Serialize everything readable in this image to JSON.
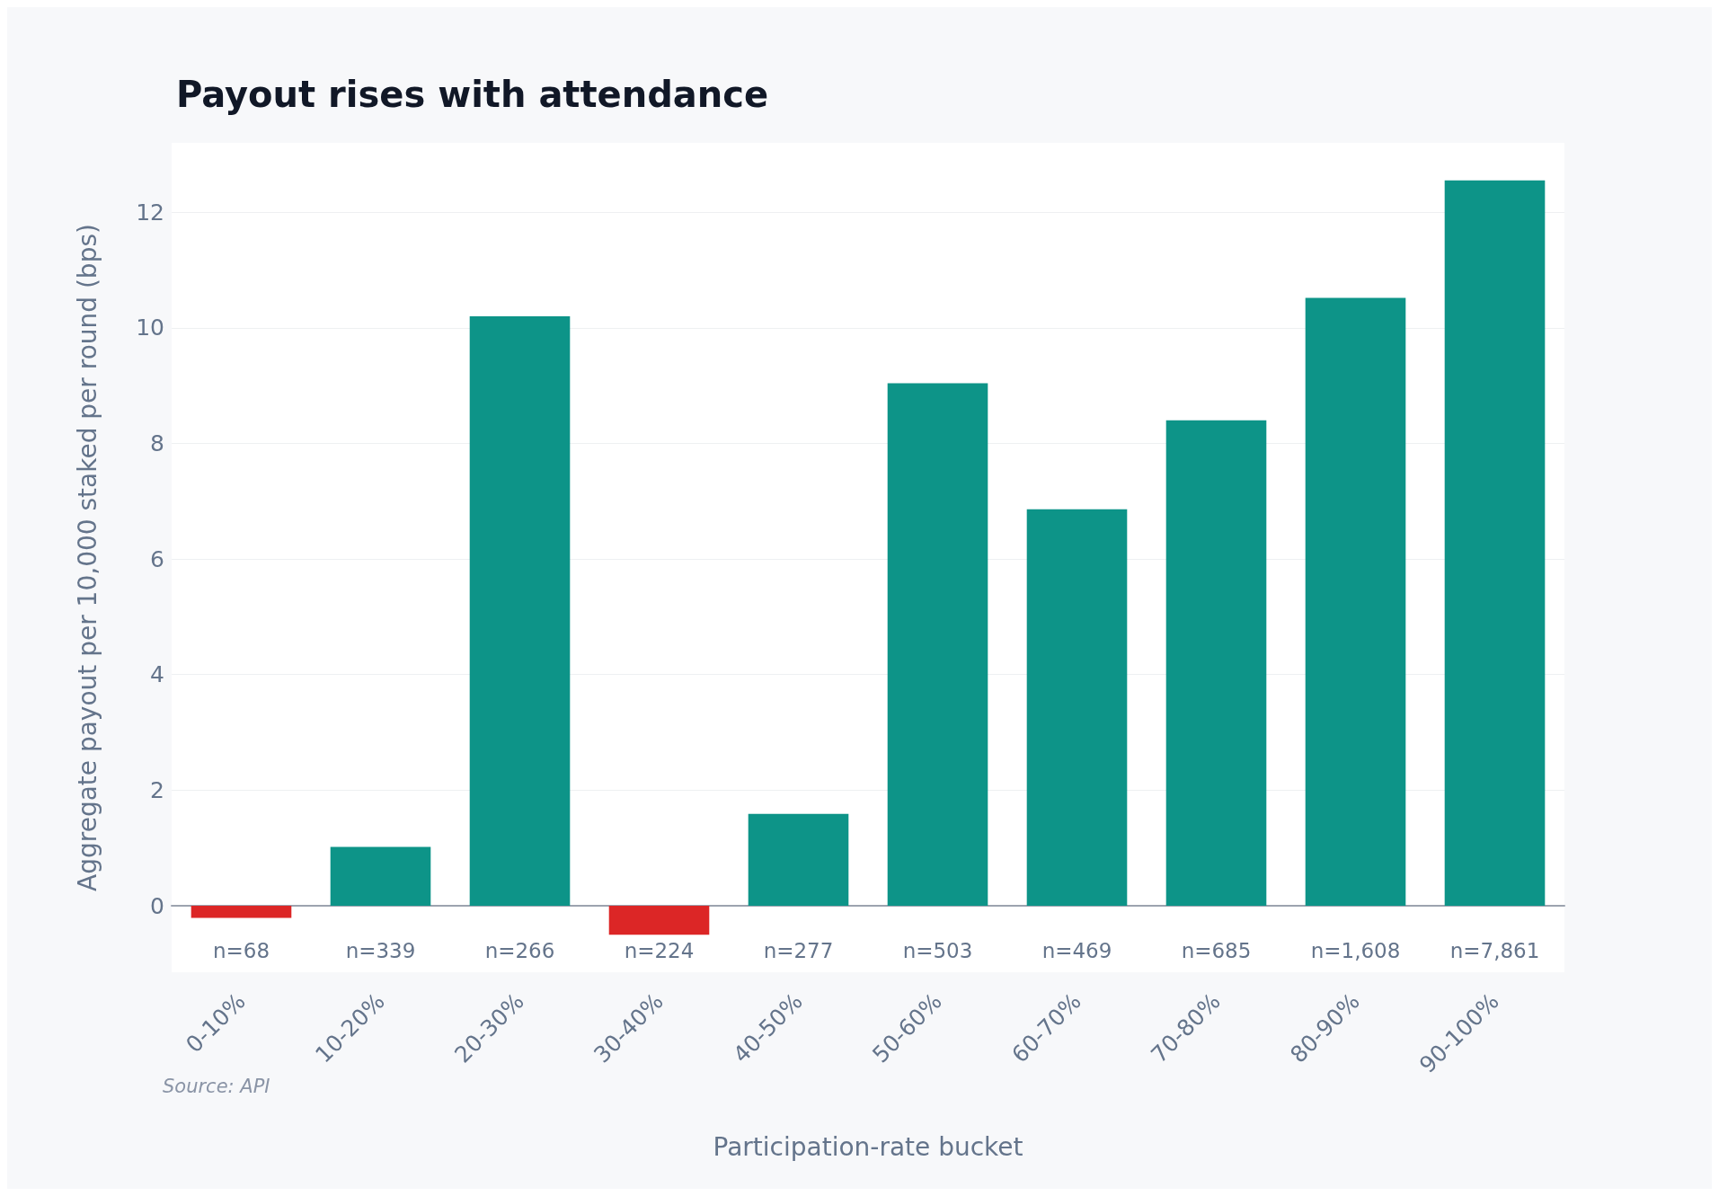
{
  "chart_data": {
    "type": "bar",
    "title": "Payout rises with attendance",
    "xlabel": "Participation-rate bucket",
    "ylabel": "Aggregate payout per 10,000 staked per round (bps)",
    "categories": [
      "0-10%",
      "10-20%",
      "20-30%",
      "30-40%",
      "40-50%",
      "50-60%",
      "60-70%",
      "70-80%",
      "80-90%",
      "90-100%"
    ],
    "values": [
      -0.21,
      1.02,
      10.2,
      -0.5,
      1.59,
      9.04,
      6.86,
      8.4,
      10.52,
      12.55
    ],
    "colors": [
      "#dc2626",
      "#0d9488",
      "#0d9488",
      "#dc2626",
      "#0d9488",
      "#0d9488",
      "#0d9488",
      "#0d9488",
      "#0d9488",
      "#0d9488"
    ],
    "ylim": [
      -1.15,
      13.2
    ],
    "yticks": [
      0,
      2,
      4,
      6,
      8,
      10,
      12
    ],
    "grid": "y",
    "annotations": [
      "n=68",
      "n=339",
      "n=266",
      "n=224",
      "n=277",
      "n=503",
      "n=469",
      "n=685",
      "n=1,608",
      "n=7,861",
      "Source: API"
    ]
  }
}
